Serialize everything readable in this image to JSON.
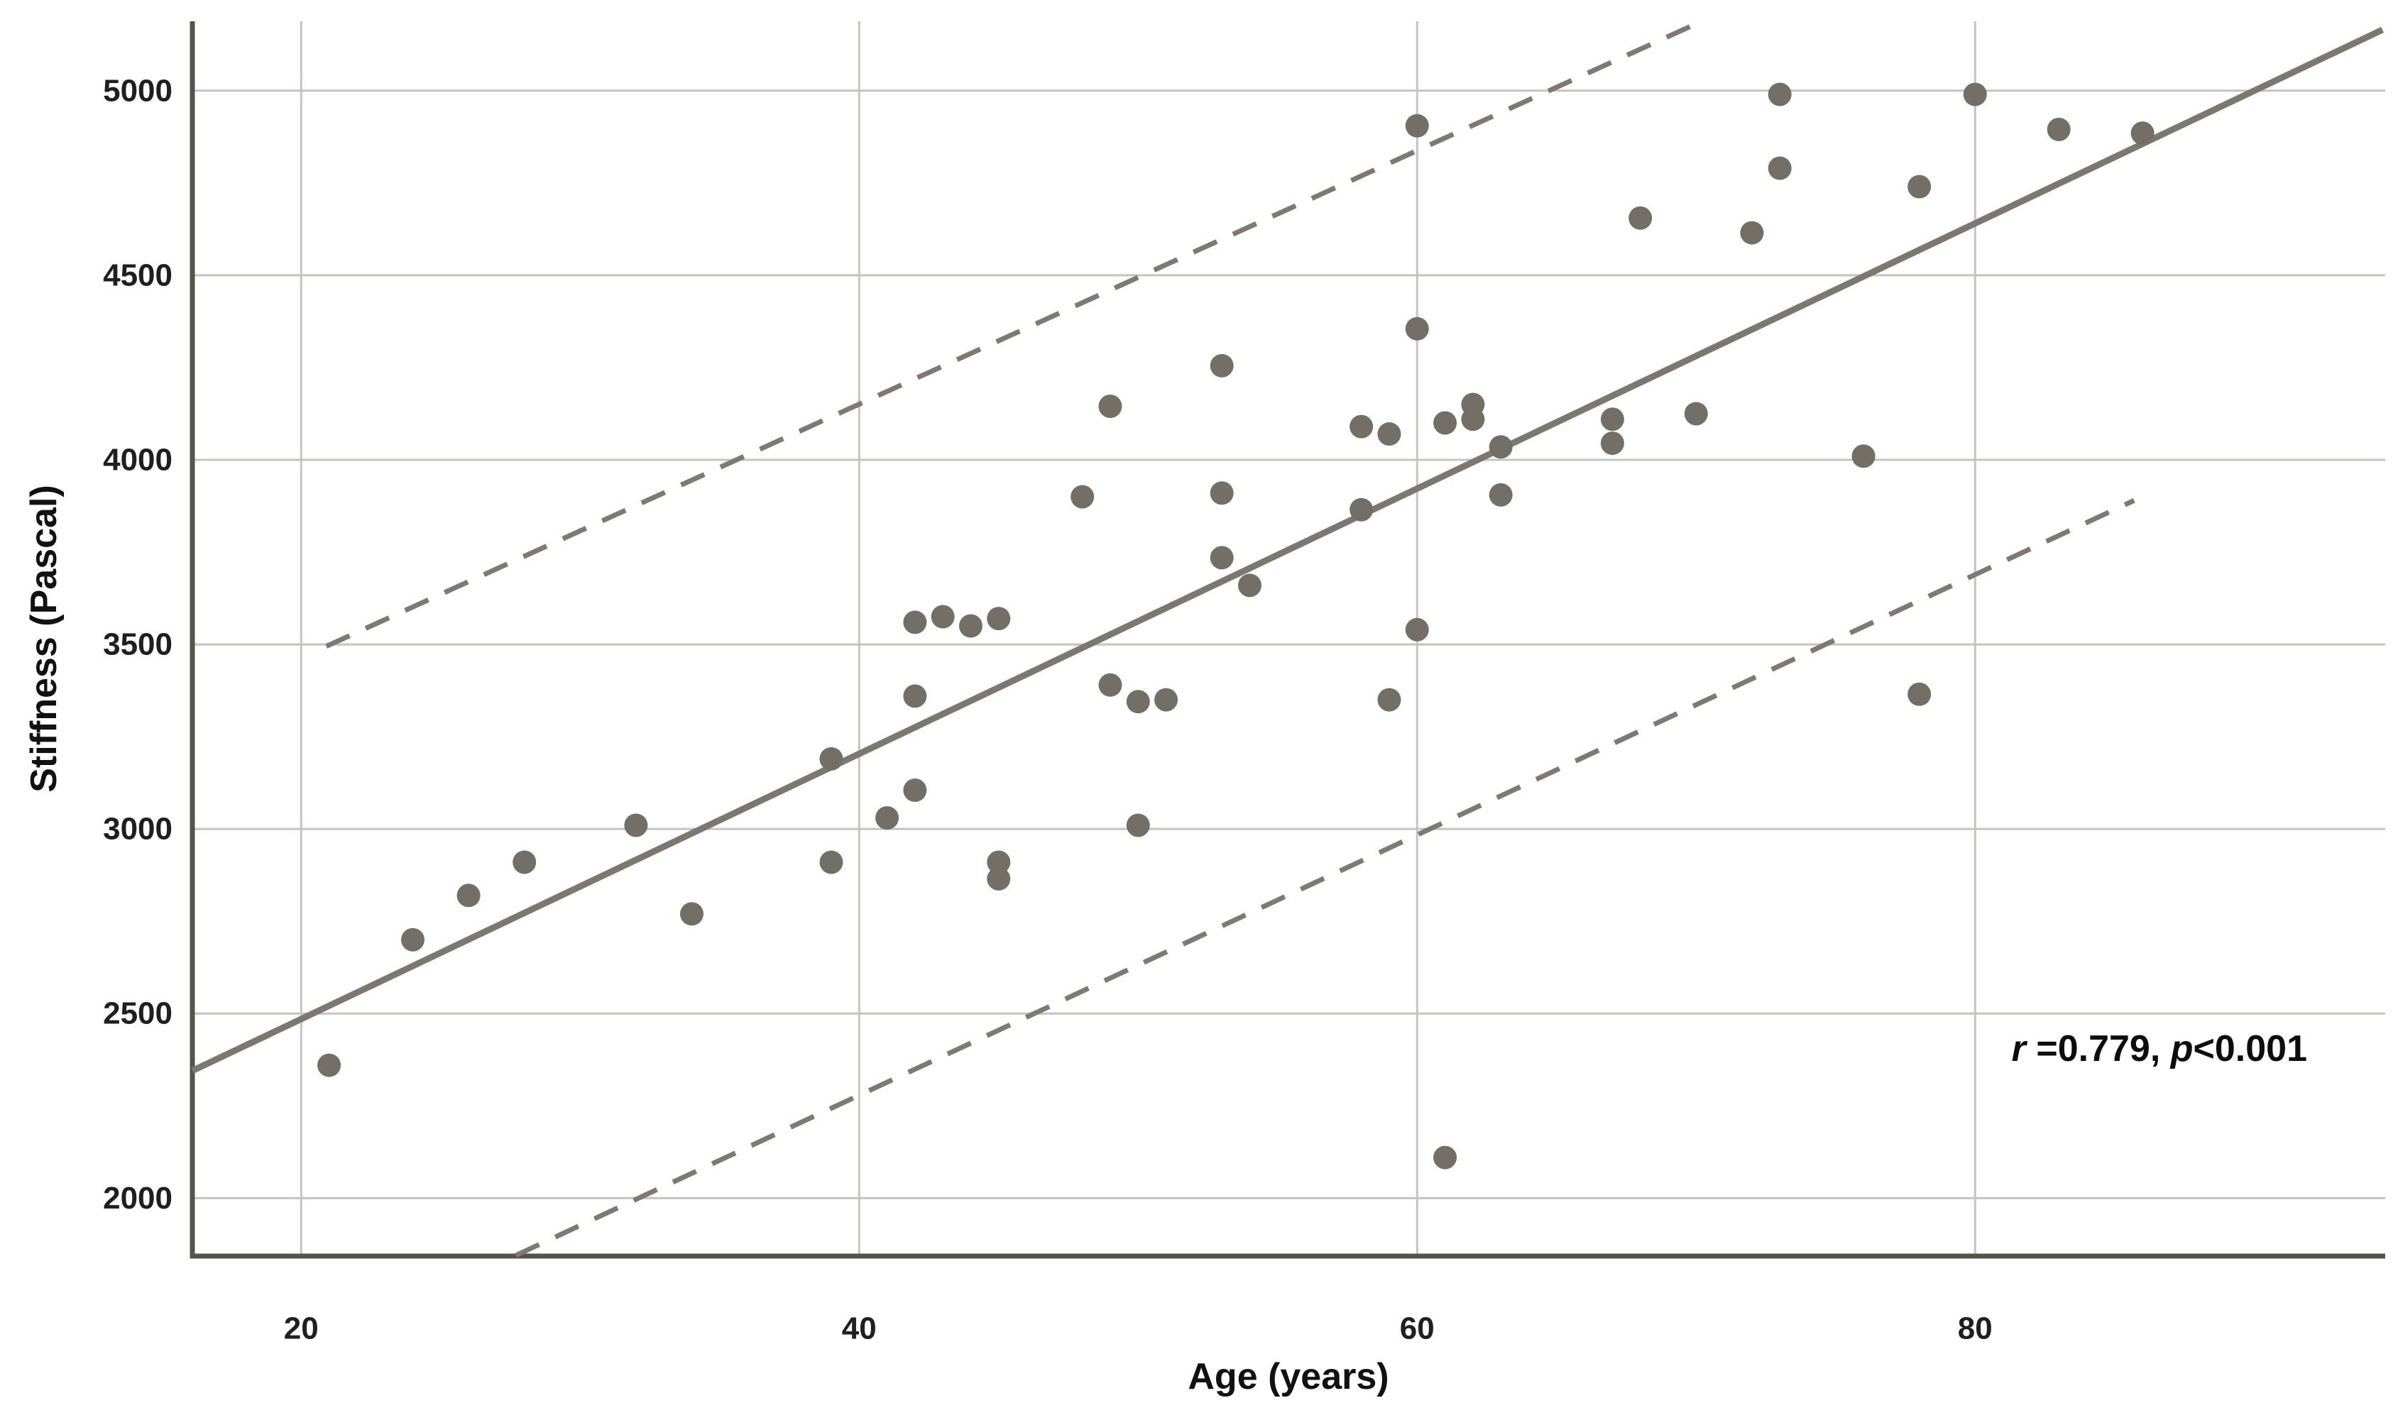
{
  "chart_data": {
    "type": "scatter",
    "title": "",
    "xlabel": "Age (years)",
    "ylabel": "Stiffness (Pascal)",
    "annotation": {
      "r_symbol": "r",
      "r_value": " =0.779, ",
      "p_symbol": "p",
      "p_value": "<0.001"
    },
    "xlim": [
      16.1,
      94.7
    ],
    "ylim": [
      1843,
      5188
    ],
    "x_ticks": [
      20,
      40,
      60,
      80
    ],
    "y_ticks": [
      2000,
      2500,
      3000,
      3500,
      4000,
      4500,
      5000
    ],
    "grid": true,
    "legend_position": "none",
    "points": [
      [
        21,
        2360
      ],
      [
        24,
        2700
      ],
      [
        26,
        2820
      ],
      [
        28,
        2910
      ],
      [
        32,
        3010
      ],
      [
        34,
        2770
      ],
      [
        39,
        3190
      ],
      [
        39,
        2910
      ],
      [
        41,
        3030
      ],
      [
        42,
        3105
      ],
      [
        42,
        3360
      ],
      [
        42,
        3560
      ],
      [
        43,
        3575
      ],
      [
        44,
        3550
      ],
      [
        45,
        3570
      ],
      [
        45,
        2910
      ],
      [
        45,
        2865
      ],
      [
        48,
        3900
      ],
      [
        49,
        4145
      ],
      [
        49,
        3390
      ],
      [
        50,
        3345
      ],
      [
        50,
        3010
      ],
      [
        51,
        3350
      ],
      [
        53,
        4255
      ],
      [
        53,
        3910
      ],
      [
        53,
        3735
      ],
      [
        54,
        3660
      ],
      [
        58,
        4090
      ],
      [
        58,
        3865
      ],
      [
        59,
        4070
      ],
      [
        59,
        3350
      ],
      [
        60,
        4905
      ],
      [
        60,
        4355
      ],
      [
        60,
        3540
      ],
      [
        61,
        4100
      ],
      [
        61,
        2110
      ],
      [
        62,
        4150
      ],
      [
        62,
        4110
      ],
      [
        63,
        4035
      ],
      [
        63,
        3905
      ],
      [
        67,
        4110
      ],
      [
        67,
        4045
      ],
      [
        68,
        4655
      ],
      [
        70,
        4125
      ],
      [
        72,
        4615
      ],
      [
        73,
        4990
      ],
      [
        73,
        4790
      ],
      [
        76,
        4010
      ],
      [
        78,
        4740
      ],
      [
        78,
        3365
      ],
      [
        80,
        4990
      ],
      [
        83,
        4895
      ],
      [
        86,
        4885
      ]
    ],
    "lines": [
      {
        "name": "regression-line",
        "x1": 16.1,
        "y1": 2345,
        "x2": 94.6,
        "y2": 5165,
        "dashed": false
      },
      {
        "name": "ci-upper-dashed",
        "x1": 20.9,
        "y1": 3495,
        "x2": 70.2,
        "y2": 5188,
        "dashed": true
      },
      {
        "name": "ci-lower-dashed",
        "x1": 27.7,
        "y1": 1845,
        "x2": 85.7,
        "y2": 3890,
        "dashed": true
      }
    ],
    "colors": {
      "point": "#736e66",
      "line": "#7c776f",
      "dashed_line": "#7e7971",
      "grid": "#c6c4c0",
      "axis": "#55534e",
      "text": "#111111",
      "background": "#ffffff"
    }
  }
}
